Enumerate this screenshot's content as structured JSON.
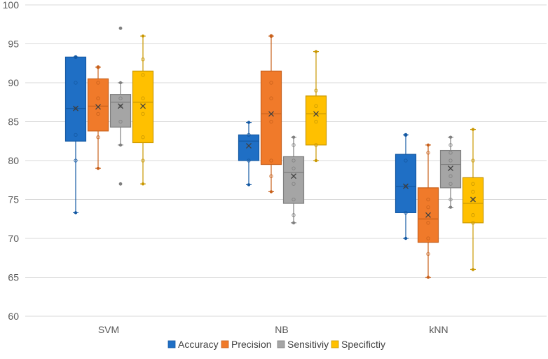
{
  "chart_data": {
    "type": "box",
    "title": "",
    "xlabel": "",
    "ylabel": "",
    "ylim": [
      60,
      100
    ],
    "yticks": [
      60,
      65,
      70,
      75,
      80,
      85,
      90,
      95,
      100
    ],
    "grid": true,
    "legend_position": "bottom",
    "categories": [
      "SVM",
      "NB",
      "kNN"
    ],
    "series": [
      {
        "name": "Accuracy",
        "color": "#1f6fc5",
        "stroke": "#1459a3",
        "boxes": [
          {
            "min": 73.3,
            "q1": 82.5,
            "median": 86.7,
            "q3": 93.3,
            "max": 93.3,
            "mean": 86.7,
            "points": [
              80,
              83.3,
              86.7,
              90,
              93.3
            ],
            "outliers": []
          },
          {
            "min": 76.9,
            "q1": 80,
            "median": 82.5,
            "q3": 83.3,
            "max": 84.9,
            "mean": 81.9,
            "points": [
              80,
              83.3
            ],
            "outliers": []
          },
          {
            "min": 70,
            "q1": 73.3,
            "median": 76.7,
            "q3": 80.8,
            "max": 83.3,
            "mean": 76.7,
            "points": [
              73.3,
              76.7,
              80,
              83.3
            ],
            "outliers": []
          }
        ]
      },
      {
        "name": "Precision",
        "color": "#f07a2a",
        "stroke": "#c8601b",
        "boxes": [
          {
            "min": 79,
            "q1": 83.8,
            "median": 87,
            "q3": 90.5,
            "max": 92,
            "mean": 86.9,
            "points": [
              83,
              86,
              88,
              90,
              92
            ],
            "outliers": []
          },
          {
            "min": 76,
            "q1": 79.5,
            "median": 86,
            "q3": 91.5,
            "max": 96,
            "mean": 86,
            "points": [
              78,
              80,
              85,
              88,
              90,
              96
            ],
            "outliers": []
          },
          {
            "min": 65,
            "q1": 69.5,
            "median": 72.5,
            "q3": 76.5,
            "max": 82,
            "mean": 73,
            "points": [
              68,
              70,
              72,
              74,
              75,
              81
            ],
            "outliers": []
          }
        ]
      },
      {
        "name": "Sensitiviy",
        "color": "#a5a5a5",
        "stroke": "#7f7f7f",
        "boxes": [
          {
            "min": 82,
            "q1": 84.3,
            "median": 87.5,
            "q3": 88.5,
            "max": 90,
            "mean": 87,
            "points": [
              85,
              87,
              88
            ],
            "outliers": [
              77,
              97
            ]
          },
          {
            "min": 72,
            "q1": 74.5,
            "median": 78.5,
            "q3": 80.5,
            "max": 83,
            "mean": 78,
            "points": [
              73,
              75,
              77,
              79,
              80,
              82
            ],
            "outliers": []
          },
          {
            "min": 74,
            "q1": 76.5,
            "median": 79.5,
            "q3": 81.3,
            "max": 83,
            "mean": 79,
            "points": [
              75,
              77,
              78,
              80,
              81,
              82
            ],
            "outliers": []
          }
        ]
      },
      {
        "name": "Specifictiy",
        "color": "#ffc000",
        "stroke": "#c99700",
        "boxes": [
          {
            "min": 77,
            "q1": 82.3,
            "median": 87.5,
            "q3": 91.5,
            "max": 96,
            "mean": 87,
            "points": [
              80,
              83,
              86,
              88,
              91,
              93
            ],
            "outliers": []
          },
          {
            "min": 80,
            "q1": 82,
            "median": 86,
            "q3": 88.3,
            "max": 94,
            "mean": 86,
            "points": [
              82,
              85,
              87,
              89
            ],
            "outliers": []
          },
          {
            "min": 66,
            "q1": 72,
            "median": 74.5,
            "q3": 77.8,
            "max": 84,
            "mean": 75,
            "points": [
              72,
              73,
              75,
              76,
              77,
              80
            ],
            "outliers": []
          }
        ]
      }
    ]
  }
}
